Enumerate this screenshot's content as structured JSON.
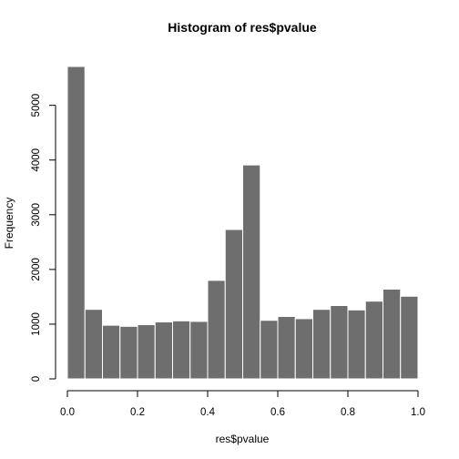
{
  "chart_data": {
    "type": "bar",
    "title": "Histogram of res$pvalue",
    "xlabel": "res$pvalue",
    "ylabel": "Frequency",
    "bar_color": "#6e6e6e",
    "bins": [
      [
        0.0,
        0.05
      ],
      [
        0.05,
        0.1
      ],
      [
        0.1,
        0.15
      ],
      [
        0.15,
        0.2
      ],
      [
        0.2,
        0.25
      ],
      [
        0.25,
        0.3
      ],
      [
        0.3,
        0.35
      ],
      [
        0.35,
        0.4
      ],
      [
        0.4,
        0.45
      ],
      [
        0.45,
        0.5
      ],
      [
        0.5,
        0.55
      ],
      [
        0.55,
        0.6
      ],
      [
        0.6,
        0.65
      ],
      [
        0.65,
        0.7
      ],
      [
        0.7,
        0.75
      ],
      [
        0.75,
        0.8
      ],
      [
        0.8,
        0.85
      ],
      [
        0.85,
        0.9
      ],
      [
        0.9,
        0.95
      ],
      [
        0.95,
        1.0
      ]
    ],
    "values": [
      5710,
      1270,
      980,
      960,
      990,
      1040,
      1060,
      1050,
      1800,
      2730,
      3910,
      1070,
      1140,
      1100,
      1270,
      1340,
      1260,
      1420,
      1640,
      1510
    ],
    "xlim": [
      0,
      1
    ],
    "ylim": [
      0,
      5710
    ],
    "x_ticks": [
      0.0,
      0.2,
      0.4,
      0.6,
      0.8,
      1.0
    ],
    "x_tick_labels": [
      "0.0",
      "0.2",
      "0.4",
      "0.6",
      "0.8",
      "1.0"
    ],
    "y_ticks": [
      0,
      1000,
      2000,
      3000,
      4000,
      5000
    ],
    "y_tick_labels": [
      "0",
      "1000",
      "2000",
      "3000",
      "4000",
      "5000"
    ],
    "grid": false
  }
}
